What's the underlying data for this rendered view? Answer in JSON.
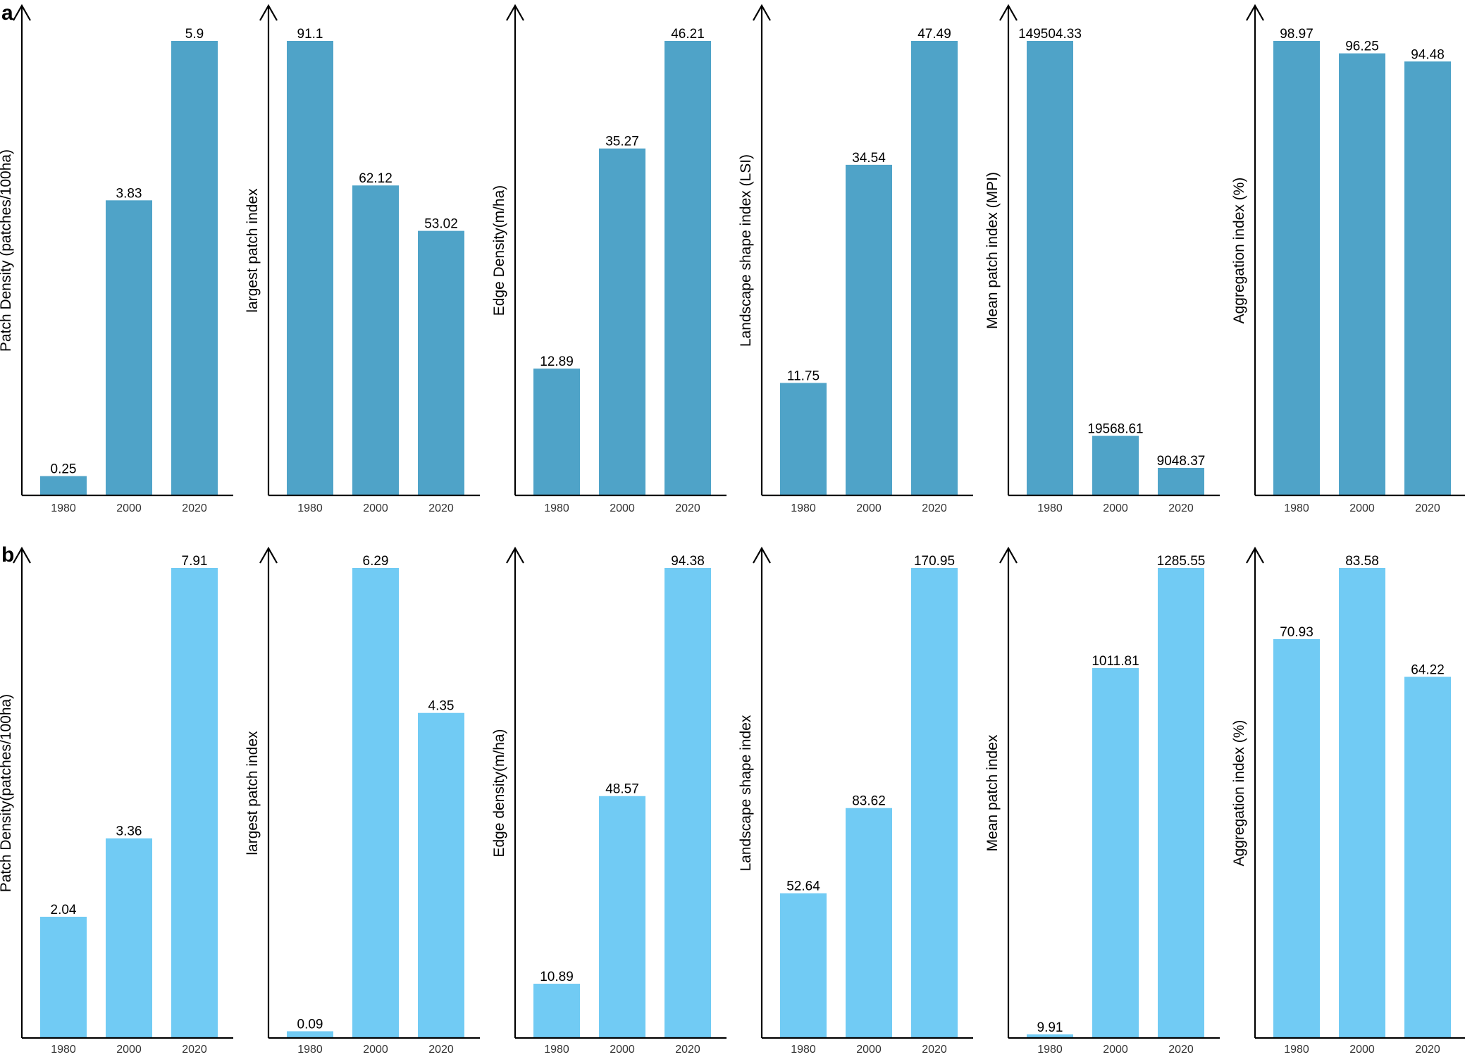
{
  "panel_labels": [
    "a",
    "b"
  ],
  "colors": {
    "row_a_bar": "#4fa3c8",
    "row_b_bar": "#71cbf4",
    "axis": "#000000"
  },
  "chart_data": [
    {
      "type": "bar",
      "row": "a",
      "ylabel": "Patch Density (patches/100ha)",
      "categories": [
        "1980",
        "2000",
        "2020"
      ],
      "values": [
        0.25,
        3.83,
        5.9
      ],
      "value_labels": [
        "0.25",
        "3.83",
        "5.9"
      ]
    },
    {
      "type": "bar",
      "row": "a",
      "ylabel": "largest patch index",
      "categories": [
        "1980",
        "2000",
        "2020"
      ],
      "values": [
        91.1,
        62.12,
        53.02
      ],
      "value_labels": [
        "91.1",
        "62.12",
        "53.02"
      ]
    },
    {
      "type": "bar",
      "row": "a",
      "ylabel": "Edge Density(m/ha)",
      "categories": [
        "1980",
        "2000",
        "2020"
      ],
      "values": [
        12.89,
        35.27,
        46.21
      ],
      "value_labels": [
        "12.89",
        "35.27",
        "46.21"
      ]
    },
    {
      "type": "bar",
      "row": "a",
      "ylabel": "Landscape shape index (LSI)",
      "categories": [
        "1980",
        "2000",
        "2020"
      ],
      "values": [
        11.75,
        34.54,
        47.49
      ],
      "value_labels": [
        "11.75",
        "34.54",
        "47.49"
      ]
    },
    {
      "type": "bar",
      "row": "a",
      "ylabel": "Mean patch index (MPI)",
      "categories": [
        "1980",
        "2000",
        "2020"
      ],
      "values": [
        149504.33,
        19568.61,
        9048.37
      ],
      "value_labels": [
        "149504.33",
        "19568.61",
        "9048.37"
      ]
    },
    {
      "type": "bar",
      "row": "a",
      "ylabel": "Aggregation index (%)",
      "categories": [
        "1980",
        "2000",
        "2020"
      ],
      "values": [
        98.97,
        96.25,
        94.48
      ],
      "value_labels": [
        "98.97",
        "96.25",
        "94.48"
      ]
    },
    {
      "type": "bar",
      "row": "b",
      "ylabel": "Patch Density(patches/100ha)",
      "categories": [
        "1980",
        "2000",
        "2020"
      ],
      "values": [
        2.04,
        3.36,
        7.91
      ],
      "value_labels": [
        "2.04",
        "3.36",
        "7.91"
      ]
    },
    {
      "type": "bar",
      "row": "b",
      "ylabel": "largest patch index",
      "categories": [
        "1980",
        "2000",
        "2020"
      ],
      "values": [
        0.09,
        6.29,
        4.35
      ],
      "value_labels": [
        "0.09",
        "6.29",
        "4.35"
      ]
    },
    {
      "type": "bar",
      "row": "b",
      "ylabel": "Edge density(m/ha)",
      "categories": [
        "1980",
        "2000",
        "2020"
      ],
      "values": [
        10.89,
        48.57,
        94.38
      ],
      "value_labels": [
        "10.89",
        "48.57",
        "94.38"
      ]
    },
    {
      "type": "bar",
      "row": "b",
      "ylabel": "Landscape shape index",
      "categories": [
        "1980",
        "2000",
        "2020"
      ],
      "values": [
        52.64,
        83.62,
        170.95
      ],
      "value_labels": [
        "52.64",
        "83.62",
        "170.95"
      ]
    },
    {
      "type": "bar",
      "row": "b",
      "ylabel": "Mean patch index",
      "categories": [
        "1980",
        "2000",
        "2020"
      ],
      "values": [
        9.91,
        1011.81,
        1285.55
      ],
      "value_labels": [
        "9.91",
        "1011.81",
        "1285.55"
      ]
    },
    {
      "type": "bar",
      "row": "b",
      "ylabel": "Aggregation index (%)",
      "categories": [
        "1980",
        "2000",
        "2020"
      ],
      "values": [
        70.93,
        83.58,
        64.22
      ],
      "value_labels": [
        "70.93",
        "83.58",
        "64.22"
      ]
    }
  ]
}
